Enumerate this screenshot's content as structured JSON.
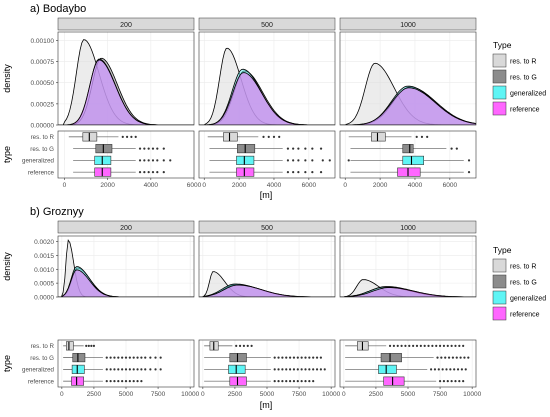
{
  "legend": {
    "title": "Type",
    "items": [
      {
        "label": "res. to R",
        "color": "#d9d9d9"
      },
      {
        "label": "res. to G",
        "color": "#8c8c8c"
      },
      {
        "label": "generalized",
        "color": "#5ff5f5"
      },
      {
        "label": "reference",
        "color": "#ff66ff"
      }
    ]
  },
  "box_labels": [
    "res. to R",
    "res. to G",
    "generalized",
    "reference"
  ],
  "chart_data": [
    {
      "type": "density",
      "title": "a) Bodaybo",
      "ylabel": "density",
      "ylim": [
        0,
        0.0011
      ],
      "yticks": [
        "0.00000",
        "0.00025",
        "0.00050",
        "0.00075",
        "0.00100"
      ],
      "ytick_values": [
        0,
        0.00025,
        0.0005,
        0.00075,
        0.001
      ],
      "box_ylabel": "type",
      "xlabel": "[m]",
      "facets": [
        {
          "label": "200",
          "xlim": [
            -300,
            6000
          ],
          "xticks": [
            "0",
            "2000",
            "4000",
            "6000"
          ],
          "xtick_values": [
            0,
            2000,
            4000,
            6000
          ],
          "density": [
            {
              "name": "res. to R",
              "peak_x": 900,
              "peak_y": 0.00101,
              "left_sd": 350,
              "right_sd": 700
            },
            {
              "name": "res. to G",
              "peak_x": 1700,
              "peak_y": 0.00079,
              "left_sd": 420,
              "right_sd": 750
            },
            {
              "name": "generalized",
              "peak_x": 1600,
              "peak_y": 0.00078,
              "left_sd": 420,
              "right_sd": 760
            },
            {
              "name": "reference",
              "peak_x": 1600,
              "peak_y": 0.00077,
              "left_sd": 430,
              "right_sd": 760
            }
          ],
          "boxes": [
            {
              "name": "res. to R",
              "whisker_low": 200,
              "q1": 850,
              "median": 1150,
              "q3": 1500,
              "whisker_high": 2500,
              "outliers": [
                2700,
                2900,
                3100,
                3300
              ]
            },
            {
              "name": "res. to G",
              "whisker_low": 400,
              "q1": 1450,
              "median": 1800,
              "q3": 2200,
              "whisker_high": 3300,
              "outliers": [
                3500,
                3700,
                3900,
                4100,
                4300,
                4600
              ]
            },
            {
              "name": "generalized",
              "whisker_low": 400,
              "q1": 1400,
              "median": 1750,
              "q3": 2150,
              "whisker_high": 3300,
              "outliers": [
                3500,
                3700,
                3900,
                4100,
                4300,
                4600,
                4900
              ]
            },
            {
              "name": "reference",
              "whisker_low": 400,
              "q1": 1400,
              "median": 1750,
              "q3": 2150,
              "whisker_high": 3300,
              "outliers": [
                3500,
                3700,
                3900,
                4100,
                4300,
                4600
              ]
            }
          ]
        },
        {
          "label": "500",
          "xlim": [
            -300,
            7500
          ],
          "xticks": [
            "0",
            "2000",
            "4000",
            "6000"
          ],
          "xtick_values": [
            0,
            2000,
            4000,
            6000
          ],
          "density": [
            {
              "name": "res. to R",
              "peak_x": 1300,
              "peak_y": 0.00091,
              "left_sd": 420,
              "right_sd": 800
            },
            {
              "name": "res. to G",
              "peak_x": 2300,
              "peak_y": 0.00064,
              "left_sd": 600,
              "right_sd": 1050
            },
            {
              "name": "generalized",
              "peak_x": 2200,
              "peak_y": 0.00066,
              "left_sd": 600,
              "right_sd": 1050
            },
            {
              "name": "reference",
              "peak_x": 2250,
              "peak_y": 0.00062,
              "left_sd": 620,
              "right_sd": 1050
            }
          ],
          "boxes": [
            {
              "name": "res. to R",
              "whisker_low": 200,
              "q1": 1100,
              "median": 1450,
              "q3": 1900,
              "whisker_high": 3100,
              "outliers": [
                3400,
                3700,
                4000,
                4300
              ]
            },
            {
              "name": "res. to G",
              "whisker_low": 300,
              "q1": 1900,
              "median": 2350,
              "q3": 2900,
              "whisker_high": 4500,
              "outliers": [
                4800,
                5100,
                5400,
                5800,
                6200,
                6700
              ]
            },
            {
              "name": "generalized",
              "whisker_low": 300,
              "q1": 1850,
              "median": 2300,
              "q3": 2850,
              "whisker_high": 4500,
              "outliers": [
                4800,
                5100,
                5400,
                5800,
                6200,
                6800,
                7200
              ]
            },
            {
              "name": "reference",
              "whisker_low": 300,
              "q1": 1850,
              "median": 2300,
              "q3": 2850,
              "whisker_high": 4500,
              "outliers": [
                4800,
                5100,
                5400,
                5800,
                6200,
                6700
              ]
            }
          ]
        },
        {
          "label": "1000",
          "xlim": [
            -300,
            7500
          ],
          "xticks": [
            "0",
            "2000",
            "4000",
            "6000"
          ],
          "xtick_values": [
            0,
            2000,
            4000,
            6000
          ],
          "density": [
            {
              "name": "res. to R",
              "peak_x": 1700,
              "peak_y": 0.00073,
              "left_sd": 550,
              "right_sd": 1100
            },
            {
              "name": "res. to G",
              "peak_x": 3700,
              "peak_y": 0.00045,
              "left_sd": 950,
              "right_sd": 1500
            },
            {
              "name": "generalized",
              "peak_x": 3600,
              "peak_y": 0.00046,
              "left_sd": 950,
              "right_sd": 1500
            },
            {
              "name": "reference",
              "peak_x": 3650,
              "peak_y": 0.00044,
              "left_sd": 980,
              "right_sd": 1500
            }
          ],
          "boxes": [
            {
              "name": "res. to R",
              "whisker_low": 200,
              "q1": 1500,
              "median": 1850,
              "q3": 2300,
              "whisker_high": 3800,
              "outliers": [
                4100,
                4400,
                4700
              ]
            },
            {
              "name": "res. to G",
              "whisker_low": 300,
              "q1": 3300,
              "median": 3700,
              "q3": 3900,
              "whisker_high": 5800,
              "outliers": [
                6100,
                6400
              ]
            },
            {
              "name": "generalized",
              "whisker_low": 300,
              "q1": 3300,
              "median": 3800,
              "q3": 4500,
              "whisker_high": 6800,
              "outliers": [
                200,
                7100
              ]
            },
            {
              "name": "reference",
              "whisker_low": 300,
              "q1": 3000,
              "median": 3600,
              "q3": 4300,
              "whisker_high": 6800,
              "outliers": [
                7100
              ]
            }
          ]
        }
      ]
    },
    {
      "type": "density",
      "title": "b) Groznyy",
      "ylabel": "density",
      "ylim": [
        0,
        0.0022
      ],
      "yticks": [
        "0.0000",
        "0.0005",
        "0.0010",
        "0.0015",
        "0.0020"
      ],
      "ytick_values": [
        0,
        0.0005,
        0.001,
        0.0015,
        0.002
      ],
      "box_ylabel": "type",
      "xlabel": "[m]",
      "facets": [
        {
          "label": "200",
          "xlim": [
            -300,
            10300
          ],
          "xticks": [
            "0",
            "2500",
            "5000",
            "7500",
            "10000"
          ],
          "xtick_values": [
            0,
            2500,
            5000,
            7500,
            10000
          ],
          "density": [
            {
              "name": "res. to R",
              "peak_x": 500,
              "peak_y": 0.00205,
              "left_sd": 180,
              "right_sd": 420
            },
            {
              "name": "res. to G",
              "peak_x": 1200,
              "peak_y": 0.00105,
              "left_sd": 420,
              "right_sd": 1000
            },
            {
              "name": "generalized",
              "peak_x": 1150,
              "peak_y": 0.0011,
              "left_sd": 420,
              "right_sd": 1000
            },
            {
              "name": "reference",
              "peak_x": 1150,
              "peak_y": 0.00098,
              "left_sd": 430,
              "right_sd": 1000
            }
          ],
          "boxes": [
            {
              "name": "res. to R",
              "whisker_low": 100,
              "q1": 350,
              "median": 550,
              "q3": 900,
              "whisker_high": 1700,
              "outliers": [
                1900,
                2100,
                2300,
                2500
              ]
            },
            {
              "name": "res. to G",
              "whisker_low": 100,
              "q1": 850,
              "median": 1250,
              "q3": 1800,
              "whisker_high": 3200,
              "outliers": [
                3500,
                3800,
                4100,
                4400,
                4700,
                5000,
                5300,
                5600,
                5900,
                6200,
                6500,
                6900,
                7300,
                7700
              ]
            },
            {
              "name": "generalized",
              "whisker_low": 100,
              "q1": 800,
              "median": 1200,
              "q3": 1750,
              "whisker_high": 3200,
              "outliers": [
                3500,
                3800,
                4100,
                4400,
                4700,
                5000,
                5300,
                5600,
                5900,
                6200,
                6500,
                6900,
                7300,
                7700
              ]
            },
            {
              "name": "reference",
              "whisker_low": 100,
              "q1": 750,
              "median": 1150,
              "q3": 1700,
              "whisker_high": 3200,
              "outliers": [
                3500,
                3800,
                4100,
                4400,
                4700,
                5000,
                5300,
                5600,
                5900,
                6200
              ]
            }
          ]
        },
        {
          "label": "500",
          "xlim": [
            -300,
            10300
          ],
          "xticks": [
            "0",
            "2500",
            "5000",
            "7500",
            "10000"
          ],
          "xtick_values": [
            0,
            2500,
            5000,
            7500,
            10000
          ],
          "density": [
            {
              "name": "res. to R",
              "peak_x": 800,
              "peak_y": 0.00092,
              "left_sd": 280,
              "right_sd": 900
            },
            {
              "name": "res. to G",
              "peak_x": 2600,
              "peak_y": 0.00045,
              "left_sd": 1000,
              "right_sd": 1900
            },
            {
              "name": "generalized",
              "peak_x": 2500,
              "peak_y": 0.00047,
              "left_sd": 1000,
              "right_sd": 1900
            },
            {
              "name": "reference",
              "peak_x": 2700,
              "peak_y": 0.00043,
              "left_sd": 1050,
              "right_sd": 1900
            }
          ],
          "boxes": [
            {
              "name": "res. to R",
              "whisker_low": 100,
              "q1": 550,
              "median": 850,
              "q3": 1200,
              "whisker_high": 2300,
              "outliers": [
                2600,
                2900,
                3200,
                3500,
                3800
              ]
            },
            {
              "name": "res. to G",
              "whisker_low": 100,
              "q1": 2100,
              "median": 2700,
              "q3": 3400,
              "whisker_high": 5300,
              "outliers": [
                5600,
                5900,
                6200,
                6500,
                6800,
                7100,
                7400,
                7700,
                8000,
                8300,
                8600,
                8900,
                9200
              ]
            },
            {
              "name": "generalized",
              "whisker_low": 100,
              "q1": 2000,
              "median": 2600,
              "q3": 3300,
              "whisker_high": 5300,
              "outliers": [
                5600,
                5900,
                6200,
                6500,
                6800,
                7100,
                7400,
                7700,
                8000,
                8300,
                8600,
                8900,
                9200,
                9500
              ]
            },
            {
              "name": "reference",
              "whisker_low": 100,
              "q1": 2100,
              "median": 2700,
              "q3": 3400,
              "whisker_high": 5300,
              "outliers": [
                5600,
                5900,
                6200,
                6500,
                6800,
                7100,
                7400,
                7700,
                8000,
                8300,
                8600
              ]
            }
          ]
        },
        {
          "label": "1000",
          "xlim": [
            -300,
            10300
          ],
          "xticks": [
            "0",
            "2500",
            "5000",
            "7500",
            "10000"
          ],
          "xtick_values": [
            0,
            2500,
            5000,
            7500,
            10000
          ],
          "density": [
            {
              "name": "res. to R",
              "peak_x": 1500,
              "peak_y": 0.00063,
              "left_sd": 500,
              "right_sd": 1200
            },
            {
              "name": "res. to G",
              "peak_x": 3300,
              "peak_y": 0.00038,
              "left_sd": 1200,
              "right_sd": 2000
            },
            {
              "name": "generalized",
              "peak_x": 3200,
              "peak_y": 0.00036,
              "left_sd": 1200,
              "right_sd": 2000
            },
            {
              "name": "reference",
              "peak_x": 3500,
              "peak_y": 0.00034,
              "left_sd": 1250,
              "right_sd": 2000
            }
          ],
          "boxes": [
            {
              "name": "res. to R",
              "whisker_low": 100,
              "q1": 1050,
              "median": 1450,
              "q3": 1900,
              "whisker_high": 3300,
              "outliers": [
                3600,
                3900,
                4200,
                4500,
                4800,
                5100,
                5400,
                5700,
                6000,
                6300,
                6600,
                6900,
                7200,
                7500,
                7800,
                8100,
                8400,
                8700,
                9000,
                9300
              ]
            },
            {
              "name": "res. to G",
              "whisker_low": 100,
              "q1": 2900,
              "median": 3600,
              "q3": 4500,
              "whisker_high": 7000,
              "outliers": [
                7300,
                7600,
                7900,
                8200,
                8500,
                8800,
                9100,
                9400,
                9700
              ]
            },
            {
              "name": "generalized",
              "whisker_low": 100,
              "q1": 2700,
              "median": 3300,
              "q3": 4100,
              "whisker_high": 6500,
              "outliers": [
                6800,
                7100,
                7400,
                7700,
                8000,
                8300,
                8600,
                8900,
                9200,
                9500
              ]
            },
            {
              "name": "reference",
              "whisker_low": 100,
              "q1": 3100,
              "median": 3800,
              "q3": 4700,
              "whisker_high": 7200,
              "outliers": [
                7500,
                7800,
                8100,
                8400,
                8700,
                9000,
                9300
              ]
            }
          ]
        }
      ]
    }
  ]
}
